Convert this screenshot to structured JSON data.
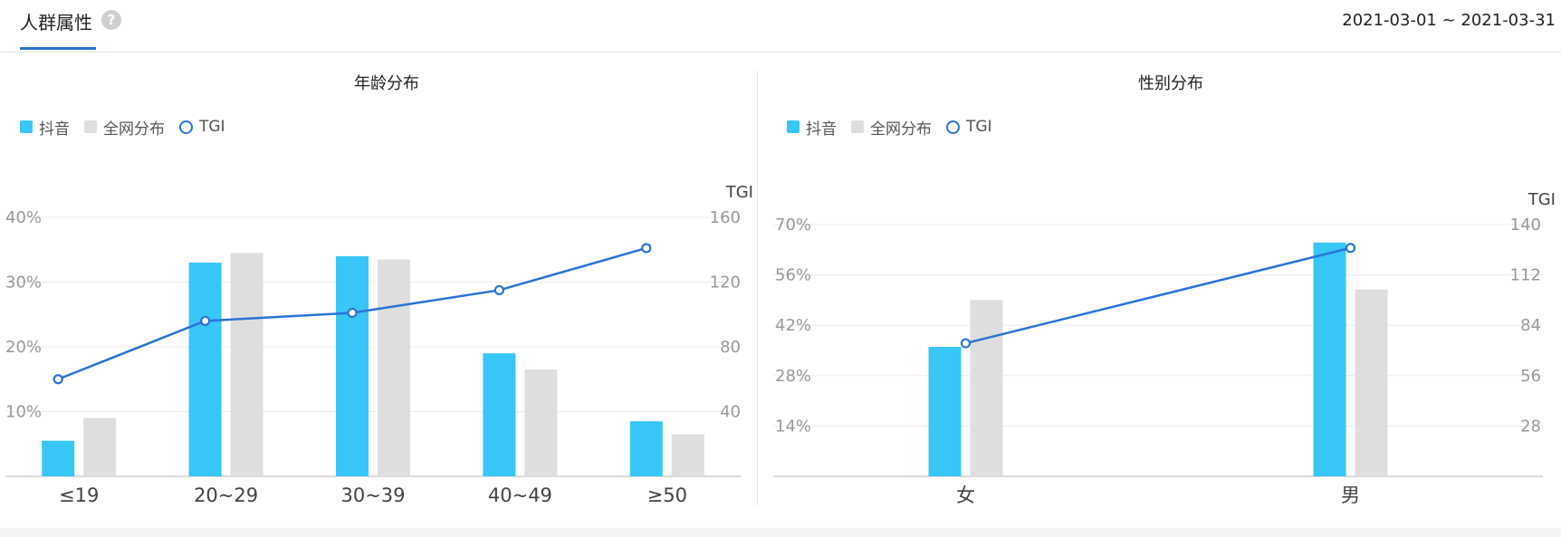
{
  "header": {
    "title": "人群属性",
    "help_glyph": "?",
    "date_range": "2021-03-01 ~ 2021-03-31"
  },
  "colors": {
    "douyin": "#38c6f7",
    "network": "#dedede",
    "tgi": "#2b73d6"
  },
  "chart_data": [
    {
      "type": "bar",
      "title": "年龄分布",
      "legend": [
        "抖音",
        "全网分布",
        "TGI"
      ],
      "categories": [
        "≤19",
        "20~29",
        "30~39",
        "40~49",
        "≥50"
      ],
      "series": [
        {
          "name": "抖音",
          "type": "bar",
          "axis": "left",
          "values": [
            5.5,
            33,
            34,
            19,
            8.5
          ]
        },
        {
          "name": "全网分布",
          "type": "bar",
          "axis": "left",
          "values": [
            9,
            34.5,
            33.5,
            16.5,
            6.5
          ]
        },
        {
          "name": "TGI",
          "type": "line",
          "axis": "right",
          "values": [
            60,
            96,
            101,
            115,
            141
          ]
        }
      ],
      "y_left": {
        "ylim": [
          0,
          40
        ],
        "ticks": [
          "10%",
          "20%",
          "30%",
          "40%"
        ],
        "tick_values": [
          10,
          20,
          30,
          40
        ]
      },
      "y_right": {
        "label": "TGI",
        "ylim": [
          0,
          160
        ],
        "ticks": [
          "40",
          "80",
          "120",
          "160"
        ],
        "tick_values": [
          40,
          80,
          120,
          160
        ]
      },
      "grid": true
    },
    {
      "type": "bar",
      "title": "性别分布",
      "legend": [
        "抖音",
        "全网分布",
        "TGI"
      ],
      "categories": [
        "女",
        "男"
      ],
      "series": [
        {
          "name": "抖音",
          "type": "bar",
          "axis": "left",
          "values": [
            36,
            65
          ]
        },
        {
          "name": "全网分布",
          "type": "bar",
          "axis": "left",
          "values": [
            49,
            52
          ]
        },
        {
          "name": "TGI",
          "type": "line",
          "axis": "right",
          "values": [
            74,
            127
          ]
        }
      ],
      "y_left": {
        "ylim": [
          0,
          70
        ],
        "ticks": [
          "14%",
          "28%",
          "42%",
          "56%",
          "70%"
        ],
        "tick_values": [
          14,
          28,
          42,
          56,
          70
        ]
      },
      "y_right": {
        "label": "TGI",
        "ylim": [
          0,
          140
        ],
        "ticks": [
          "28",
          "56",
          "84",
          "112",
          "140"
        ],
        "tick_values": [
          28,
          56,
          84,
          112,
          140
        ]
      },
      "grid": true
    }
  ]
}
